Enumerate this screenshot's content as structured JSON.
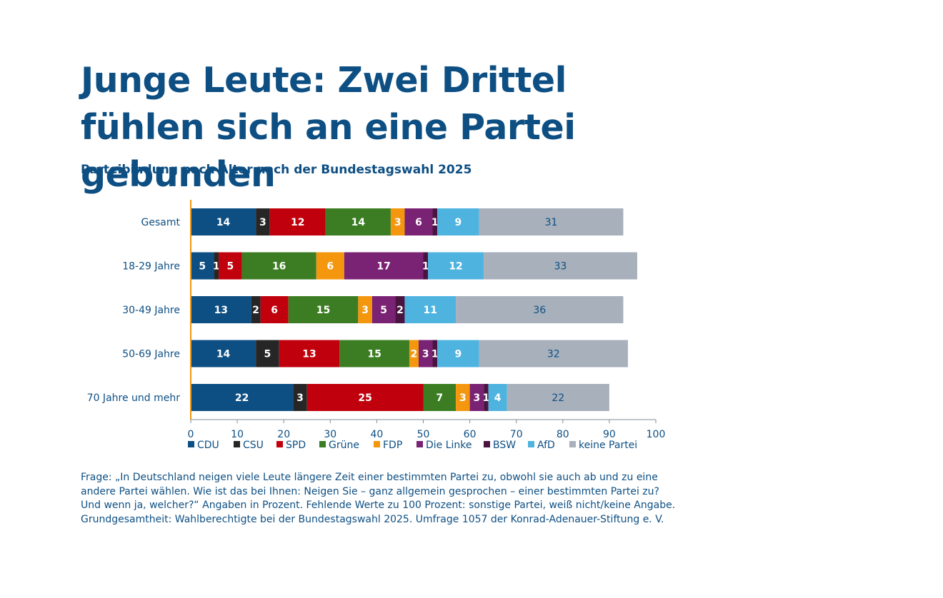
{
  "title": "Junge Leute: Zwei Drittel fühlen sich an eine Partei gebunden",
  "subtitle": "Parteibindung nach Alter nach der Bundestagswahl 2025",
  "footnote": "Frage: „In Deutschland neigen viele Leute längere Zeit einer bestimmten Partei zu, obwohl sie auch ab und zu eine andere Partei wählen. Wie ist das bei Ihnen: Neigen Sie – ganz allgemein gesprochen – einer bestimmten Partei zu? Und wenn ja, welcher?“ Angaben in Prozent. Fehlende Werte zu 100 Prozent: sonstige Partei, weiß nicht/keine Angabe. Grundgesamtheit: Wahlberechtigte bei der Bundestagswahl 2025. Umfrage 1057 der Konrad-Adenauer-Stiftung e. V.",
  "chart_data": {
    "type": "bar",
    "orientation": "horizontal",
    "stacked": true,
    "categories": [
      "Gesamt",
      "18-29 Jahre",
      "30-49 Jahre",
      "50-69 Jahre",
      "70 Jahre und mehr"
    ],
    "series": [
      {
        "name": "CDU",
        "color": "#0e4f83",
        "label_color": "#ffffff",
        "values": [
          14,
          5,
          13,
          14,
          22
        ]
      },
      {
        "name": "CSU",
        "color": "#262626",
        "label_color": "#ffffff",
        "values": [
          3,
          1,
          2,
          5,
          3
        ]
      },
      {
        "name": "SPD",
        "color": "#c0000c",
        "label_color": "#ffffff",
        "values": [
          12,
          5,
          6,
          13,
          25
        ]
      },
      {
        "name": "Grüne",
        "color": "#3c7d23",
        "label_color": "#ffffff",
        "values": [
          14,
          16,
          15,
          15,
          7
        ]
      },
      {
        "name": "FDP",
        "color": "#f4970f",
        "label_color": "#ffffff",
        "values": [
          3,
          6,
          3,
          2,
          3
        ]
      },
      {
        "name": "Die Linke",
        "color": "#7a2273",
        "label_color": "#ffffff",
        "values": [
          6,
          17,
          5,
          3,
          3
        ]
      },
      {
        "name": "BSW",
        "color": "#4a1440",
        "label_color": "#ffffff",
        "values": [
          1,
          1,
          2,
          1,
          1
        ]
      },
      {
        "name": "AfD",
        "color": "#4fb3e0",
        "label_color": "#ffffff",
        "values": [
          9,
          12,
          11,
          9,
          4
        ]
      },
      {
        "name": "keine Partei",
        "color": "#a7b0bb",
        "label_color": "#0e4f83",
        "values": [
          31,
          33,
          36,
          32,
          22
        ]
      }
    ],
    "xlim": [
      0,
      100
    ],
    "xticks": [
      0,
      10,
      20,
      30,
      40,
      50,
      60,
      70,
      80,
      90,
      100
    ],
    "legend": "bottom",
    "grid": false
  }
}
